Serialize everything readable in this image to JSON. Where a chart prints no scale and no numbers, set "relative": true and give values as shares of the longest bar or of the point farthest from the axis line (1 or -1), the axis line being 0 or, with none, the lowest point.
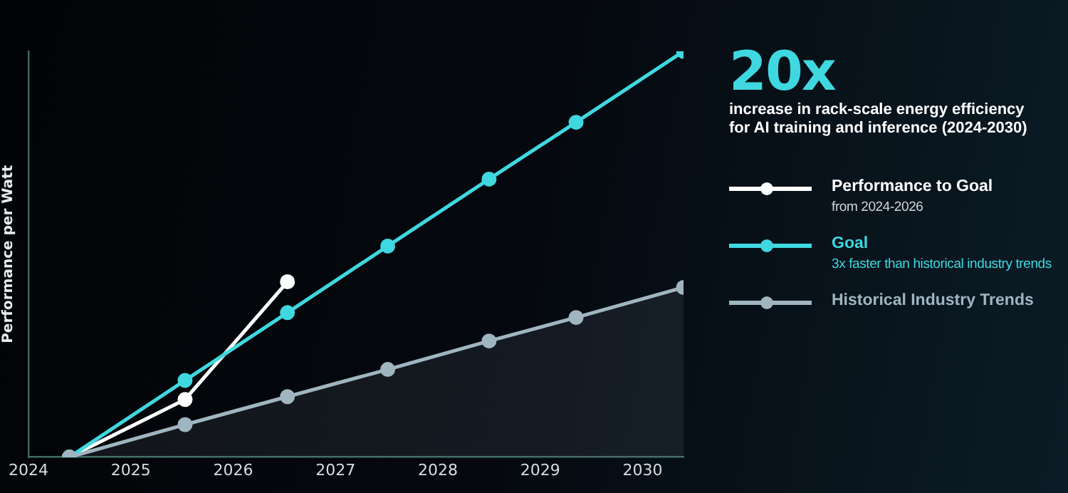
{
  "chart_data": {
    "type": "line",
    "title": "20x",
    "subtitle": "increase in rack-scale energy efficiency for AI training and inference (2024-2030)",
    "ylabel": "Performance per Watt",
    "relative": true,
    "xlim": [
      2024,
      2030.4
    ],
    "xticks": [
      2024,
      2025,
      2026,
      2027,
      2028,
      2029,
      2030
    ],
    "grid": false,
    "legend": "right",
    "marker": "circle",
    "annotations": [
      "from 2024-2026",
      "3x faster than historical industry trends"
    ],
    "series": [
      {
        "name": "Performance to Goal",
        "color": "#ffffff",
        "x": [
          2024.4,
          2025.53,
          2026.53
        ],
        "values": [
          0,
          0.142,
          0.432
        ]
      },
      {
        "name": "Goal",
        "color": "#3fd8e0",
        "x": [
          2024.4,
          2025.53,
          2026.53,
          2027.51,
          2028.5,
          2029.35,
          2030.4
        ],
        "values": [
          0,
          0.189,
          0.356,
          0.52,
          0.685,
          0.825,
          1
        ]
      },
      {
        "name": "Historical Industry Trends",
        "type": "area",
        "color": "#9fb5c0",
        "x": [
          2024.4,
          2025.53,
          2026.53,
          2027.51,
          2028.5,
          2029.35,
          2030.4
        ],
        "values": [
          0,
          0.08,
          0.149,
          0.216,
          0.286,
          0.344,
          0.418
        ]
      }
    ]
  }
}
